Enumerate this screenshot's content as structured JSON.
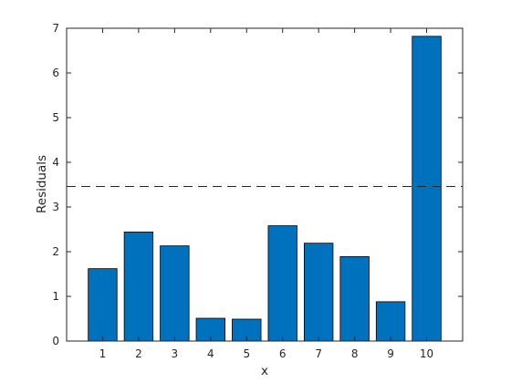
{
  "chart_data": {
    "type": "bar",
    "categories": [
      "1",
      "2",
      "3",
      "4",
      "5",
      "6",
      "7",
      "8",
      "9",
      "10"
    ],
    "values": [
      1.62,
      2.44,
      2.13,
      0.51,
      0.49,
      2.58,
      2.19,
      1.89,
      0.88,
      6.82
    ],
    "xlabel": "x",
    "ylabel": "Residuals",
    "ylim": [
      0,
      7
    ],
    "yticks": [
      "0",
      "1",
      "2",
      "3",
      "4",
      "5",
      "6",
      "7"
    ],
    "reference_line": {
      "y": 3.46,
      "style": "dashed"
    },
    "grid": false,
    "legend": "none",
    "colors": {
      "bar": "#0072bd",
      "bar_edge": "#000000",
      "axis": "#262626",
      "reference_line": "#262626"
    }
  }
}
